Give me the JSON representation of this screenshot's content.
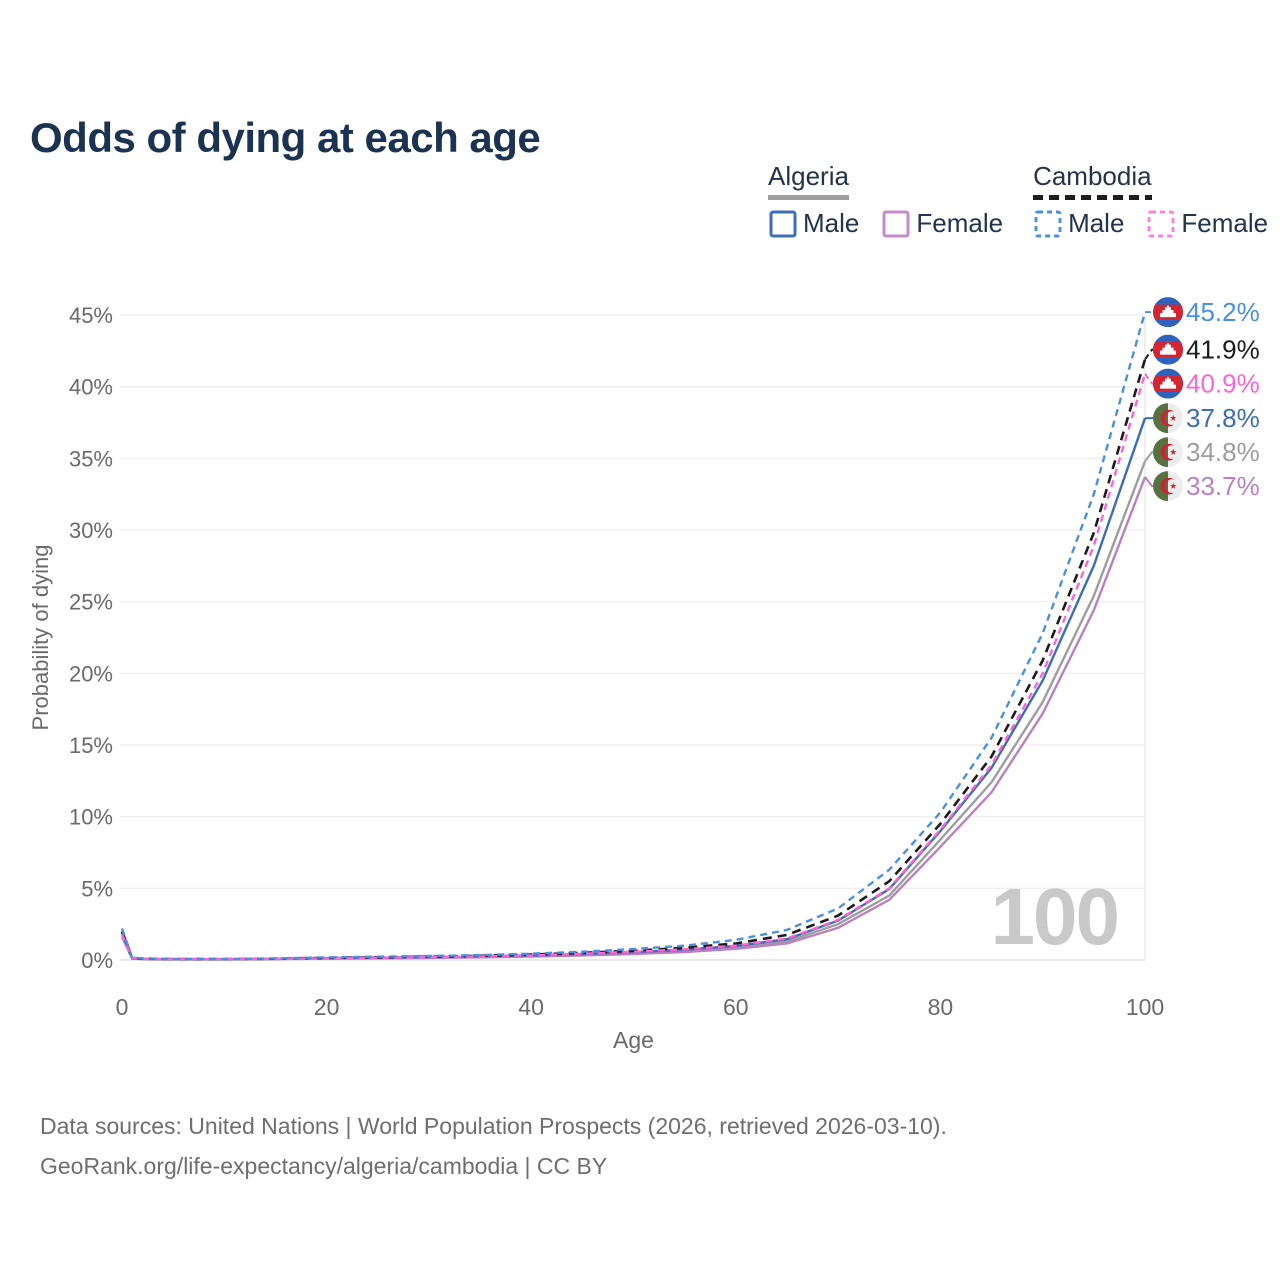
{
  "title": "Odds of dying at each age",
  "colors": {
    "title_text": "#1b3350",
    "legend_text": "#22344c",
    "axis_text": "#6a6a6a",
    "gridline": "#ededed",
    "zero_gridline": "#dcdcdc",
    "crosshair": "#e4e4e4",
    "watermark": "#c9c9c9",
    "footer_text": "#6e6e6e",
    "algeria_male": "#3d6db5",
    "algeria_female": "#ba80c2",
    "algeria_both": "#9e9e9e",
    "cambodia_male": "#4a90e2",
    "cambodia_female": "#ff63d8",
    "cambodia_both": "#1c1c1c"
  },
  "legend": {
    "groups": [
      {
        "title": "Algeria",
        "line_style": "solid",
        "underline_color": "#9e9e9e",
        "items": [
          {
            "label": "Male",
            "color": "#3d6db5",
            "dashed": false
          },
          {
            "label": "Female",
            "color": "#c48bcb",
            "dashed": false
          }
        ]
      },
      {
        "title": "Cambodia",
        "line_style": "dashed",
        "underline_color": "#1c1c1c",
        "items": [
          {
            "label": "Male",
            "color": "#4a90e2",
            "dashed": true
          },
          {
            "label": "Female",
            "color": "#ff80e5",
            "dashed": true
          }
        ]
      }
    ]
  },
  "footer": {
    "line1": "Data sources: United Nations | World Population Prospects (2026, retrieved 2026-03-10).",
    "line2": "GeoRank.org/life-expectancy/algeria/cambodia | CC BY"
  },
  "chart_data": {
    "type": "line",
    "title": "Odds of dying at each age",
    "xlabel": "Age",
    "ylabel": "Probability of dying",
    "xlim": [
      0,
      100
    ],
    "ylim": [
      0,
      45
    ],
    "grid": true,
    "hover_age_label": "100",
    "x_ticks": [
      0,
      20,
      40,
      60,
      80,
      100
    ],
    "y_ticks": [
      0,
      5,
      10,
      15,
      20,
      25,
      30,
      35,
      40,
      45
    ],
    "y_tick_labels": [
      "0%",
      "5%",
      "10%",
      "15%",
      "20%",
      "25%",
      "30%",
      "35%",
      "40%",
      "45%"
    ],
    "x": [
      0,
      1,
      2,
      5,
      10,
      15,
      20,
      25,
      30,
      35,
      40,
      45,
      50,
      55,
      60,
      65,
      70,
      75,
      80,
      85,
      90,
      95,
      100
    ],
    "series": [
      {
        "name": "Algeria (both sexes)",
        "country": "Algeria",
        "sex": "Both",
        "flag": "algeria",
        "color": "#9e9e9e",
        "dashed": false,
        "end_label": "34.8%",
        "values": [
          1.75,
          0.11,
          0.07,
          0.05,
          0.05,
          0.07,
          0.11,
          0.14,
          0.17,
          0.22,
          0.28,
          0.37,
          0.48,
          0.63,
          0.87,
          1.3,
          2.5,
          4.5,
          8.4,
          12.4,
          18.0,
          25.4,
          34.8
        ]
      },
      {
        "name": "Algeria Female",
        "country": "Algeria",
        "sex": "Female",
        "flag": "algeria",
        "color": "#ba80c2",
        "dashed": false,
        "end_label": "33.7%",
        "values": [
          1.6,
          0.1,
          0.07,
          0.04,
          0.04,
          0.06,
          0.09,
          0.12,
          0.15,
          0.19,
          0.24,
          0.32,
          0.42,
          0.56,
          0.78,
          1.15,
          2.25,
          4.2,
          7.9,
          11.7,
          17.2,
          24.4,
          33.7
        ]
      },
      {
        "name": "Algeria Male",
        "country": "Algeria",
        "sex": "Male",
        "flag": "algeria",
        "color": "#3d6db5",
        "dashed": false,
        "end_label": "37.8%",
        "values": [
          1.9,
          0.12,
          0.08,
          0.05,
          0.05,
          0.08,
          0.13,
          0.16,
          0.2,
          0.25,
          0.32,
          0.42,
          0.55,
          0.72,
          0.98,
          1.45,
          2.75,
          4.95,
          9.0,
          13.4,
          19.5,
          27.5,
          37.8
        ]
      },
      {
        "name": "Cambodia (both sexes)",
        "country": "Cambodia",
        "sex": "Both",
        "flag": "cambodia",
        "color": "#1c1c1c",
        "dashed": true,
        "end_label": "41.9%",
        "values": [
          2.0,
          0.14,
          0.1,
          0.06,
          0.06,
          0.09,
          0.15,
          0.19,
          0.24,
          0.29,
          0.38,
          0.5,
          0.65,
          0.85,
          1.15,
          1.75,
          3.1,
          5.5,
          9.5,
          14.2,
          20.9,
          29.8,
          41.9
        ]
      },
      {
        "name": "Cambodia Female",
        "country": "Cambodia",
        "sex": "Female",
        "flag": "cambodia",
        "color": "#ff63d8",
        "dashed": true,
        "end_label": "40.9%",
        "values": [
          1.8,
          0.13,
          0.09,
          0.06,
          0.06,
          0.08,
          0.12,
          0.16,
          0.2,
          0.25,
          0.32,
          0.43,
          0.57,
          0.75,
          1.0,
          1.5,
          2.8,
          5.0,
          9.1,
          13.6,
          20.0,
          28.9,
          40.9
        ]
      },
      {
        "name": "Cambodia Male",
        "country": "Cambodia",
        "sex": "Male",
        "flag": "cambodia",
        "color": "#4a90e2",
        "dashed": true,
        "end_label": "45.2%",
        "values": [
          2.2,
          0.16,
          0.11,
          0.07,
          0.07,
          0.11,
          0.18,
          0.23,
          0.28,
          0.34,
          0.44,
          0.58,
          0.76,
          1.0,
          1.4,
          2.1,
          3.6,
          6.3,
          10.3,
          15.5,
          22.8,
          32.5,
          45.2
        ]
      }
    ]
  }
}
